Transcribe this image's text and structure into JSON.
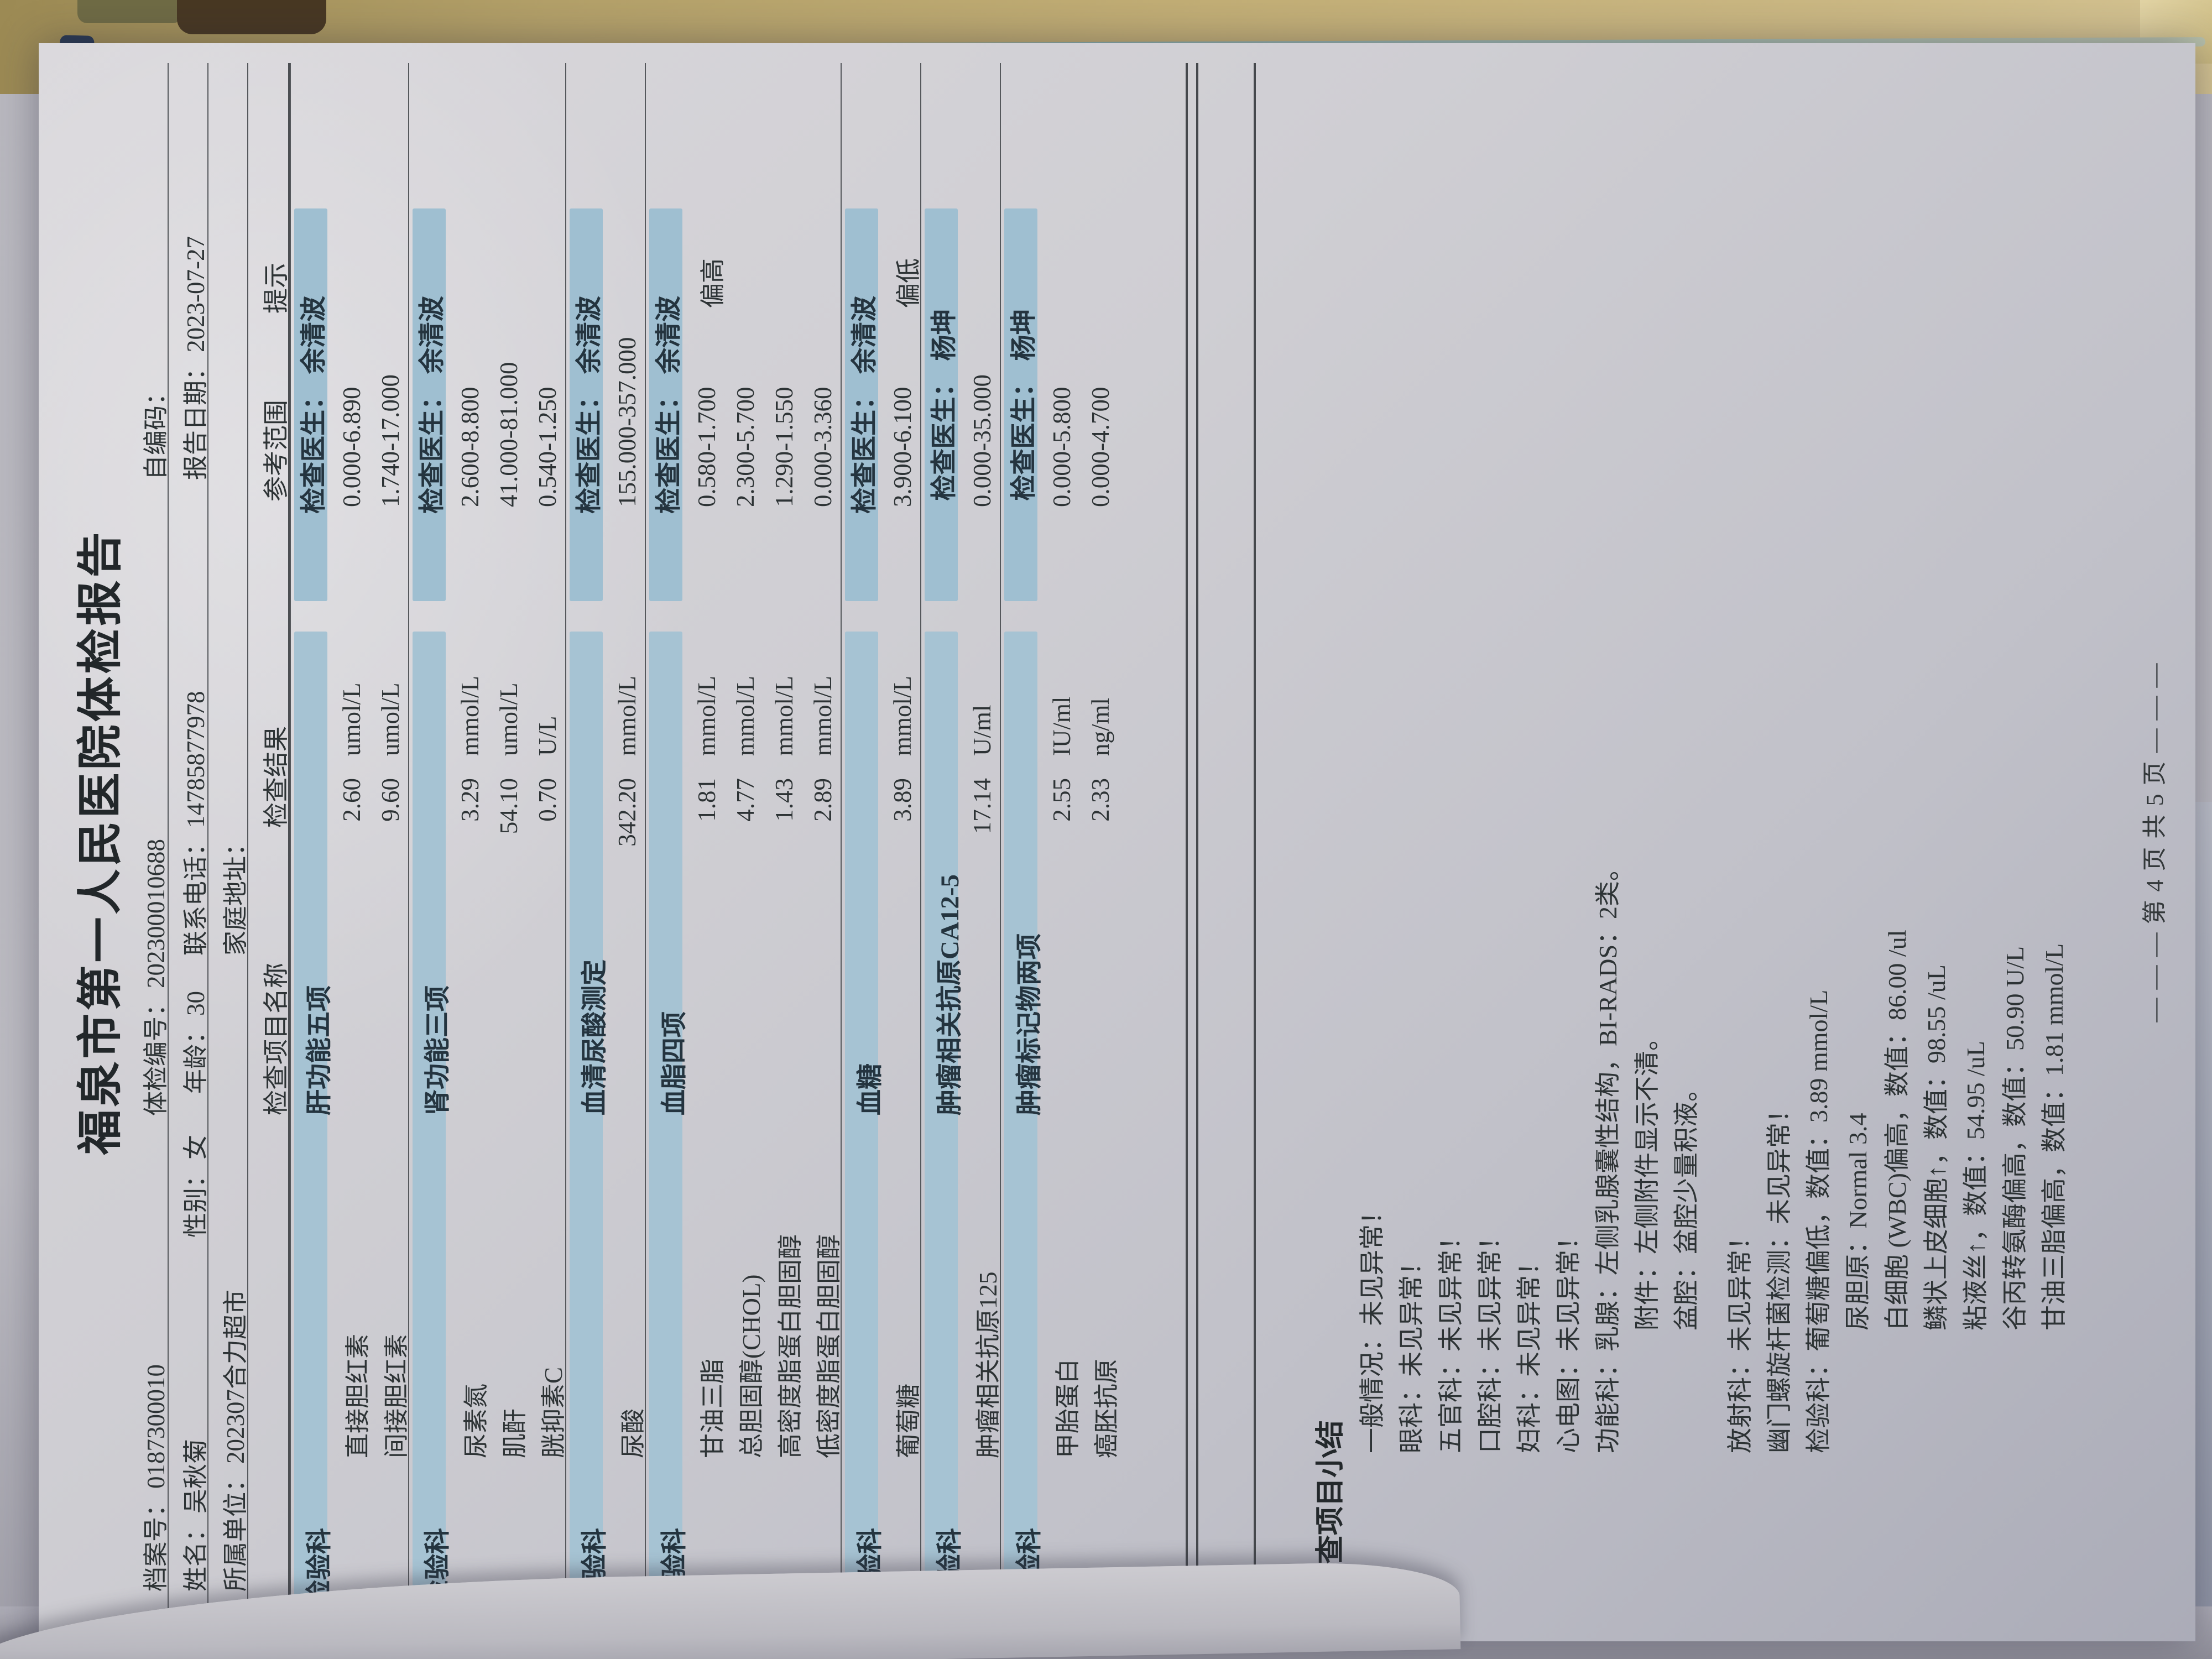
{
  "scene": {
    "colors": {
      "paper": "#cfced3",
      "section_band_blue": "#a6c3d3",
      "doctor_chip_blue": "#9fbfd1",
      "table_surface_tan": "#c2ae76",
      "book_edge_navy": "#35465f",
      "page_edge_teal": "#7aa4a4",
      "ink": "#2d3335"
    }
  },
  "document": {
    "title": "福泉市第一人民医院体检报告",
    "info": {
      "rows": [
        {
          "fields": [
            {
              "label": "档案号：",
              "value": "0187300010"
            },
            {
              "label": "体检编号：",
              "value": "202300010688"
            },
            {
              "label": "自编码：",
              "value": ""
            }
          ]
        },
        {
          "fields": [
            {
              "label": "姓名：",
              "value": "吴秋菊"
            },
            {
              "label": "性别：",
              "value": "女"
            },
            {
              "label": "年龄：",
              "value": "30"
            },
            {
              "label": "联系电话：",
              "value": "14785877978"
            },
            {
              "label": "报告日期：",
              "value": "2023-07-27"
            }
          ]
        },
        {
          "fields": [
            {
              "label": "所属单位：",
              "value": "202307合力超市"
            },
            {
              "label": "家庭地址：",
              "value": ""
            }
          ]
        }
      ]
    },
    "table": {
      "headers": [
        "检查项目名称",
        "检查结果",
        "参考范围",
        "提示"
      ],
      "sections": [
        {
          "dept": "检验科",
          "name": "肝功能五项",
          "doctor_label": "检查医生：",
          "doctor": "余清波",
          "rows": [
            {
              "item": "直接胆红素",
              "result": "2.60",
              "unit": "umol/L",
              "range": "0.000-6.890",
              "hint": ""
            },
            {
              "item": "间接胆红素",
              "result": "9.60",
              "unit": "umol/L",
              "range": "1.740-17.000",
              "hint": ""
            }
          ]
        },
        {
          "dept": "检验科",
          "name": "肾功能三项",
          "doctor_label": "检查医生：",
          "doctor": "余清波",
          "rows": [
            {
              "item": "尿素氮",
              "result": "3.29",
              "unit": "mmol/L",
              "range": "2.600-8.800",
              "hint": ""
            },
            {
              "item": "肌酐",
              "result": "54.10",
              "unit": "umol/L",
              "range": "41.000-81.000",
              "hint": ""
            },
            {
              "item": "胱抑素C",
              "result": "0.70",
              "unit": "U/L",
              "range": "0.540-1.250",
              "hint": ""
            }
          ]
        },
        {
          "dept": "检验科",
          "name": "血清尿酸测定",
          "doctor_label": "检查医生：",
          "doctor": "余清波",
          "rows": [
            {
              "item": "尿酸",
              "result": "342.20",
              "unit": "mmol/L",
              "range": "155.000-357.000",
              "hint": ""
            }
          ]
        },
        {
          "dept": "检验科",
          "name": "血脂四项",
          "doctor_label": "检查医生：",
          "doctor": "余清波",
          "rows": [
            {
              "item": "甘油三脂",
              "result": "1.81",
              "unit": "mmol/L",
              "range": "0.580-1.700",
              "hint": "偏高"
            },
            {
              "item": "总胆固醇(CHOL)",
              "result": "4.77",
              "unit": "mmol/L",
              "range": "2.300-5.700",
              "hint": ""
            },
            {
              "item": "高密度脂蛋白胆固醇",
              "result": "1.43",
              "unit": "mmol/L",
              "range": "1.290-1.550",
              "hint": ""
            },
            {
              "item": "低密度脂蛋白胆固醇",
              "result": "2.89",
              "unit": "mmol/L",
              "range": "0.000-3.360",
              "hint": ""
            }
          ]
        },
        {
          "dept": "检验科",
          "name": "血糖",
          "doctor_label": "检查医生：",
          "doctor": "余清波",
          "rows": [
            {
              "item": "葡萄糖",
              "result": "3.89",
              "unit": "mmol/L",
              "range": "3.900-6.100",
              "hint": "偏低"
            }
          ]
        },
        {
          "dept": "检验科",
          "name": "肿瘤相关抗原CA12-5",
          "doctor_label": "检查医生：",
          "doctor": "杨坤",
          "rows": [
            {
              "item": "肿瘤相关抗原125",
              "result": "17.14",
              "unit": "U/ml",
              "range": "0.000-35.000",
              "hint": ""
            }
          ]
        },
        {
          "dept": "检验科",
          "name": "肿瘤标记物两项",
          "doctor_label": "检查医生：",
          "doctor": "杨坤",
          "rows": [
            {
              "item": "甲胎蛋白",
              "result": "2.55",
              "unit": "IU/ml",
              "range": "0.000-5.800",
              "hint": ""
            },
            {
              "item": "癌胚抗原",
              "result": "2.33",
              "unit": "ng/ml",
              "range": "0.000-4.700",
              "hint": ""
            }
          ]
        }
      ]
    },
    "summary": {
      "heading": "检查项目小结",
      "lines": [
        {
          "indent": 1,
          "text": "一般情况：未见异常！"
        },
        {
          "indent": 1,
          "text": "眼科：未见异常！"
        },
        {
          "indent": 1,
          "text": "五官科：未见异常！"
        },
        {
          "indent": 1,
          "text": "口腔科：未见异常！"
        },
        {
          "indent": 1,
          "text": "妇科：未见异常！"
        },
        {
          "indent": 1,
          "text": "心电图：未见异常！"
        },
        {
          "indent": 1,
          "text": "功能科：乳腺：左侧乳腺囊性结构，BI-RADS：2类。"
        },
        {
          "indent": 2,
          "text": "附件：左侧附件显示不清。"
        },
        {
          "indent": 2,
          "text": "盆腔：盆腔少量积液。"
        },
        {
          "indent": 1,
          "text": "放射科：未见异常！"
        },
        {
          "indent": 1,
          "text": "幽门螺旋杆菌检测：未见异常！"
        },
        {
          "indent": 1,
          "text": "检验科：葡萄糖偏低，数值：3.89 mmol/L"
        },
        {
          "indent": 2,
          "text": "尿胆原：Normal 3.4"
        },
        {
          "indent": 2,
          "text": "白细胞 (WBC)偏高，数值：86.00 /ul"
        },
        {
          "indent": 2,
          "text": "鳞状上皮细胞↑，数值：98.55 /uL"
        },
        {
          "indent": 2,
          "text": "粘液丝↑，数值：54.95 /uL"
        },
        {
          "indent": 2,
          "text": "谷丙转氨酶偏高，数值：50.90 U/L"
        },
        {
          "indent": 2,
          "text": "甘油三脂偏高，数值：1.81 mmol/L"
        }
      ]
    },
    "footer": "— — —  第 4 页  共 5 页  — — —"
  }
}
